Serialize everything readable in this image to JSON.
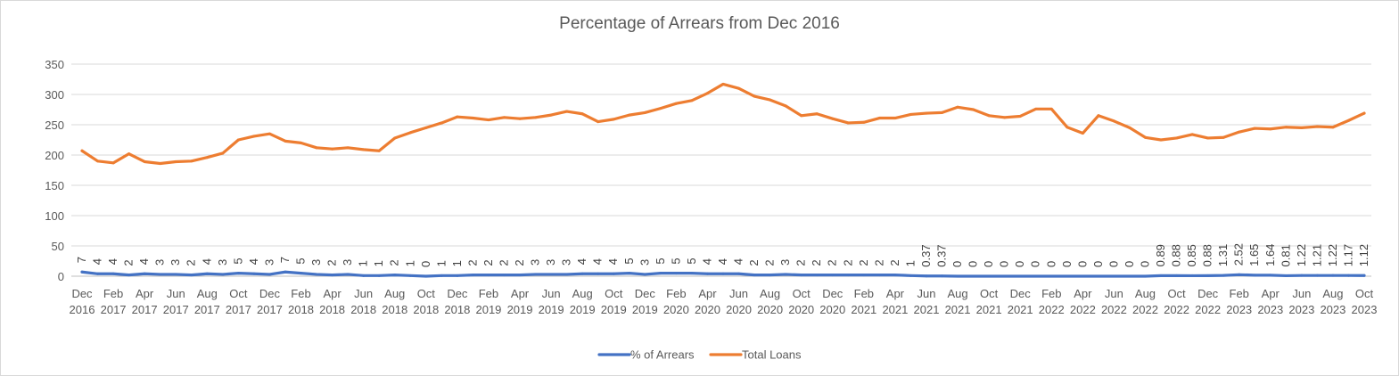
{
  "chart_data": {
    "type": "line",
    "title": "Percentage of Arrears from Dec 2016",
    "xlabel": "",
    "ylabel": "",
    "ylim": [
      0,
      350
    ],
    "yticks": [
      "0",
      "50",
      "100",
      "150",
      "200",
      "250",
      "300",
      "350"
    ],
    "grid": true,
    "legend_position": "bottom",
    "x": [
      "Dec 2016",
      "Jan 2017",
      "Feb 2017",
      "Mar 2017",
      "Apr 2017",
      "May 2017",
      "Jun 2017",
      "Jul 2017",
      "Aug 2017",
      "Sep 2017",
      "Oct 2017",
      "Nov 2017",
      "Dec 2017",
      "Jan 2018",
      "Feb 2018",
      "Mar 2018",
      "Apr 2018",
      "May 2018",
      "Jun 2018",
      "Jul 2018",
      "Aug 2018",
      "Sep 2018",
      "Oct 2018",
      "Nov 2018",
      "Dec 2018",
      "Jan 2019",
      "Feb 2019",
      "Mar 2019",
      "Apr 2019",
      "May 2019",
      "Jun 2019",
      "Jul 2019",
      "Aug 2019",
      "Sep 2019",
      "Oct 2019",
      "Nov 2019",
      "Dec 2019",
      "Jan 2020",
      "Feb 2020",
      "Mar 2020",
      "Apr 2020",
      "May 2020",
      "Jun 2020",
      "Jul 2020",
      "Aug 2020",
      "Sep 2020",
      "Oct 2020",
      "Nov 2020",
      "Dec 2020",
      "Jan 2021",
      "Feb 2021",
      "Mar 2021",
      "Apr 2021",
      "May 2021",
      "Jun 2021",
      "Jul 2021",
      "Aug 2021",
      "Sep 2021",
      "Oct 2021",
      "Nov 2021",
      "Dec 2021",
      "Jan 2022",
      "Feb 2022",
      "Mar 2022",
      "Apr 2022",
      "May 2022",
      "Jun 2022",
      "Jul 2022",
      "Aug 2022",
      "Sep 2022",
      "Oct 2022",
      "Nov 2022",
      "Dec 2022",
      "Jan 2023",
      "Feb 2023",
      "Mar 2023",
      "Apr 2023",
      "May 2023",
      "Jun 2023",
      "Jul 2023",
      "Aug 2023",
      "Sep 2023",
      "Oct 2023"
    ],
    "x_tick_labels": [
      {
        "month": "Dec",
        "year": "2016"
      },
      {
        "month": "Feb",
        "year": "2017"
      },
      {
        "month": "Apr",
        "year": "2017"
      },
      {
        "month": "Jun",
        "year": "2017"
      },
      {
        "month": "Aug",
        "year": "2017"
      },
      {
        "month": "Oct",
        "year": "2017"
      },
      {
        "month": "Dec",
        "year": "2017"
      },
      {
        "month": "Feb",
        "year": "2018"
      },
      {
        "month": "Apr",
        "year": "2018"
      },
      {
        "month": "Jun",
        "year": "2018"
      },
      {
        "month": "Aug",
        "year": "2018"
      },
      {
        "month": "Oct",
        "year": "2018"
      },
      {
        "month": "Dec",
        "year": "2018"
      },
      {
        "month": "Feb",
        "year": "2019"
      },
      {
        "month": "Apr",
        "year": "2019"
      },
      {
        "month": "Jun",
        "year": "2019"
      },
      {
        "month": "Aug",
        "year": "2019"
      },
      {
        "month": "Oct",
        "year": "2019"
      },
      {
        "month": "Dec",
        "year": "2019"
      },
      {
        "month": "Feb",
        "year": "2020"
      },
      {
        "month": "Apr",
        "year": "2020"
      },
      {
        "month": "Jun",
        "year": "2020"
      },
      {
        "month": "Aug",
        "year": "2020"
      },
      {
        "month": "Oct",
        "year": "2020"
      },
      {
        "month": "Dec",
        "year": "2020"
      },
      {
        "month": "Feb",
        "year": "2021"
      },
      {
        "month": "Apr",
        "year": "2021"
      },
      {
        "month": "Jun",
        "year": "2021"
      },
      {
        "month": "Aug",
        "year": "2021"
      },
      {
        "month": "Oct",
        "year": "2021"
      },
      {
        "month": "Dec",
        "year": "2021"
      },
      {
        "month": "Feb",
        "year": "2022"
      },
      {
        "month": "Apr",
        "year": "2022"
      },
      {
        "month": "Jun",
        "year": "2022"
      },
      {
        "month": "Aug",
        "year": "2022"
      },
      {
        "month": "Oct",
        "year": "2022"
      },
      {
        "month": "Dec",
        "year": "2022"
      },
      {
        "month": "Feb",
        "year": "2023"
      },
      {
        "month": "Apr",
        "year": "2023"
      },
      {
        "month": "Jun",
        "year": "2023"
      },
      {
        "month": "Aug",
        "year": "2023"
      },
      {
        "month": "Oct",
        "year": "2023"
      }
    ],
    "series": [
      {
        "name": "% of Arrears",
        "color": "#4472c4",
        "values": [
          7,
          4,
          4,
          2,
          4,
          3,
          3,
          2,
          4,
          3,
          5,
          4,
          3,
          7,
          5,
          3,
          2,
          3,
          1,
          1,
          2,
          1,
          0,
          1,
          1,
          2,
          2,
          2,
          2,
          3,
          3,
          3,
          4,
          4,
          4,
          5,
          3,
          5,
          5,
          5,
          4,
          4,
          4,
          2,
          2,
          3,
          2,
          2,
          2,
          2,
          2,
          2,
          2,
          1,
          0.37,
          0.37,
          0,
          0,
          0,
          0,
          0,
          0,
          0,
          0,
          0,
          0,
          0,
          0,
          0,
          0.89,
          0.88,
          0.85,
          0.88,
          1.31,
          2.52,
          1.65,
          1.64,
          0.81,
          1.22,
          1.21,
          1.22,
          1.17,
          1.12
        ],
        "data_labels": [
          "7",
          "4",
          "4",
          "2",
          "4",
          "3",
          "3",
          "2",
          "4",
          "3",
          "5",
          "4",
          "3",
          "7",
          "5",
          "3",
          "2",
          "3",
          "1",
          "1",
          "2",
          "1",
          "0",
          "1",
          "1",
          "2",
          "2",
          "2",
          "2",
          "3",
          "3",
          "3",
          "4",
          "4",
          "4",
          "5",
          "3",
          "5",
          "5",
          "5",
          "4",
          "4",
          "4",
          "2",
          "2",
          "3",
          "2",
          "2",
          "2",
          "2",
          "2",
          "2",
          "2",
          "1",
          "0.37",
          "0.37",
          "0",
          "0",
          "0",
          "0",
          "0",
          "0",
          "0",
          "0",
          "0",
          "0",
          "0",
          "0",
          "0",
          "0.89",
          "0.88",
          "0.85",
          "0.88",
          "1.31",
          "2.52",
          "1.65",
          "1.64",
          "0.81",
          "1.22",
          "1.21",
          "1.22",
          "1.17",
          "1.12"
        ]
      },
      {
        "name": "Total Loans",
        "color": "#ed7d31",
        "values": [
          207,
          190,
          187,
          202,
          189,
          186,
          189,
          190,
          196,
          203,
          225,
          231,
          235,
          223,
          220,
          212,
          210,
          212,
          209,
          207,
          228,
          237,
          245,
          253,
          263,
          261,
          258,
          262,
          260,
          262,
          266,
          272,
          268,
          255,
          259,
          266,
          270,
          277,
          285,
          290,
          302,
          317,
          310,
          297,
          291,
          281,
          265,
          268,
          260,
          253,
          254,
          261,
          261,
          267,
          269,
          270,
          279,
          275,
          265,
          262,
          264,
          276,
          276,
          246,
          236,
          265,
          256,
          245,
          229,
          225,
          228,
          234,
          228,
          229,
          238,
          244,
          243,
          246,
          245,
          247,
          246,
          257,
          269
        ]
      }
    ]
  }
}
